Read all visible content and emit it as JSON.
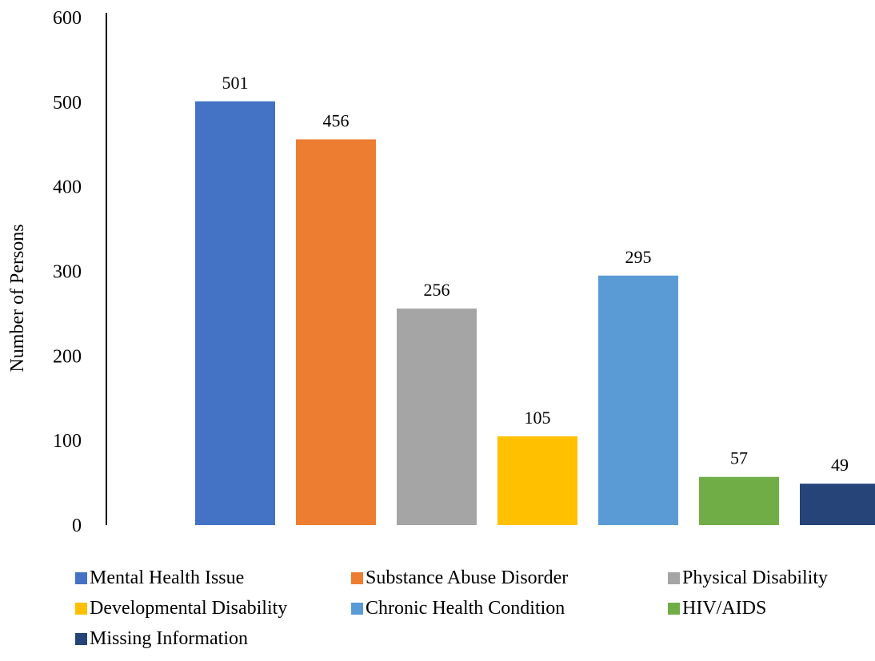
{
  "chart_data": {
    "type": "bar",
    "title": "",
    "xlabel": "",
    "ylabel": "Number of Persons",
    "ylim": [
      0,
      600
    ],
    "yticks": [
      0,
      100,
      200,
      300,
      400,
      500,
      600
    ],
    "grid": false,
    "legend_position": "bottom",
    "categories": [
      "Mental Health Issue",
      "Substance Abuse Disorder",
      "Physical Disability",
      "Developmental Disability",
      "Chronic Health Condition",
      "HIV/AIDS",
      "Missing Information"
    ],
    "values": [
      501,
      456,
      256,
      105,
      295,
      57,
      49
    ],
    "data_labels": [
      "501",
      "456",
      "256",
      "105",
      "295",
      "57",
      "49"
    ],
    "colors": [
      "#4472c4",
      "#ed7d31",
      "#a5a5a5",
      "#ffc000",
      "#5b9bd5",
      "#70ad47",
      "#264478"
    ]
  }
}
